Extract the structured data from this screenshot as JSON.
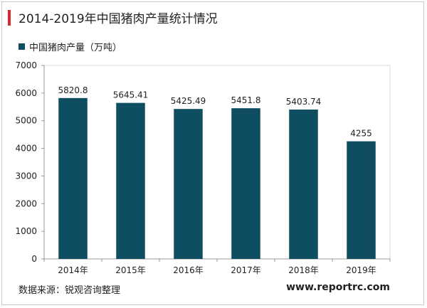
{
  "header": {
    "title": "2014-2019年中国猪肉产量统计情况"
  },
  "legend": {
    "label": "中国猪肉产量（万吨）"
  },
  "footer": {
    "source": "数据来源：锐观咨询整理",
    "website": "www.reportrc.com"
  },
  "colors": {
    "bar": "#0f4d61",
    "accent": "#e0262d",
    "grid": "#d9d9d9",
    "axis": "#999999"
  },
  "chart_data": {
    "type": "bar",
    "title": "2014-2019年中国猪肉产量统计情况",
    "categories": [
      "2014年",
      "2015年",
      "2016年",
      "2017年",
      "2018年",
      "2019年"
    ],
    "series": [
      {
        "name": "中国猪肉产量（万吨）",
        "values": [
          5820.8,
          5645.41,
          5425.49,
          5451.8,
          5403.74,
          4255
        ]
      }
    ],
    "data_labels": [
      "5820.8",
      "5645.41",
      "5425.49",
      "5451.8",
      "5403.74",
      "4255"
    ],
    "ylim": [
      0,
      7000
    ],
    "yticks": [
      0,
      1000,
      2000,
      3000,
      4000,
      5000,
      6000,
      7000
    ],
    "xlabel": "",
    "ylabel": "",
    "grid": false,
    "legend_position": "top-left"
  }
}
